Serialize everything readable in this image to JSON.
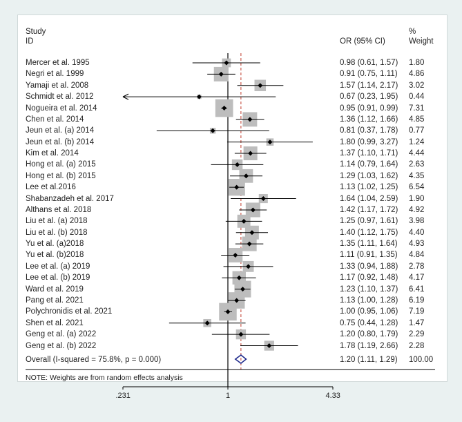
{
  "chart_data": {
    "type": "forest",
    "header": {
      "study_label_line1": "Study",
      "study_label_line2": "ID",
      "estimate_label": "OR (95% CI)",
      "weight_label_line1": "%",
      "weight_label_line2": "Weight"
    },
    "studies": [
      {
        "name": "Mercer et al. 1995",
        "or": 0.98,
        "lo": 0.61,
        "hi": 1.57,
        "weight": 1.8,
        "est_text": "0.98 (0.61, 1.57)",
        "wt_text": "1.80"
      },
      {
        "name": "Negri et al. 1999",
        "or": 0.91,
        "lo": 0.75,
        "hi": 1.11,
        "weight": 4.86,
        "est_text": "0.91 (0.75, 1.11)",
        "wt_text": "4.86"
      },
      {
        "name": "Yamaji et al. 2008",
        "or": 1.57,
        "lo": 1.14,
        "hi": 2.17,
        "weight": 3.02,
        "est_text": "1.57 (1.14, 2.17)",
        "wt_text": "3.02"
      },
      {
        "name": "Schmidt et al. 2012",
        "or": 0.67,
        "lo": 0.23,
        "hi": 1.95,
        "weight": 0.44,
        "est_text": "0.67 (0.23, 1.95)",
        "wt_text": "0.44"
      },
      {
        "name": "Nogueira et al. 2014",
        "or": 0.95,
        "lo": 0.91,
        "hi": 0.99,
        "weight": 7.31,
        "est_text": "0.95 (0.91, 0.99)",
        "wt_text": "7.31"
      },
      {
        "name": "Chen et al. 2014",
        "or": 1.36,
        "lo": 1.12,
        "hi": 1.66,
        "weight": 4.85,
        "est_text": "1.36 (1.12, 1.66)",
        "wt_text": "4.85"
      },
      {
        "name": "Jeun et al. (a) 2014",
        "or": 0.81,
        "lo": 0.37,
        "hi": 1.78,
        "weight": 0.77,
        "est_text": "0.81 (0.37, 1.78)",
        "wt_text": "0.77"
      },
      {
        "name": "Jeun et al. (b) 2014",
        "or": 1.8,
        "lo": 0.99,
        "hi": 3.27,
        "weight": 1.24,
        "est_text": "1.80 (0.99, 3.27)",
        "wt_text": "1.24"
      },
      {
        "name": "Kim et al. 2014",
        "or": 1.37,
        "lo": 1.1,
        "hi": 1.71,
        "weight": 4.44,
        "est_text": "1.37 (1.10, 1.71)",
        "wt_text": "4.44"
      },
      {
        "name": "Hong et al.  (a) 2015",
        "or": 1.14,
        "lo": 0.79,
        "hi": 1.64,
        "weight": 2.63,
        "est_text": "1.14 (0.79, 1.64)",
        "wt_text": "2.63"
      },
      {
        "name": "Hong et al. (b) 2015",
        "or": 1.29,
        "lo": 1.03,
        "hi": 1.62,
        "weight": 4.35,
        "est_text": "1.29 (1.03, 1.62)",
        "wt_text": "4.35"
      },
      {
        "name": "Lee et al.2016",
        "or": 1.13,
        "lo": 1.02,
        "hi": 1.25,
        "weight": 6.54,
        "est_text": "1.13 (1.02, 1.25)",
        "wt_text": "6.54"
      },
      {
        "name": "Shabanzadeh et al. 2017",
        "or": 1.64,
        "lo": 1.04,
        "hi": 2.59,
        "weight": 1.9,
        "est_text": "1.64 (1.04, 2.59)",
        "wt_text": "1.90"
      },
      {
        "name": "Althans et al. 2018",
        "or": 1.42,
        "lo": 1.17,
        "hi": 1.72,
        "weight": 4.92,
        "est_text": "1.42 (1.17, 1.72)",
        "wt_text": "4.92"
      },
      {
        "name": "Liu et al. (a) 2018",
        "or": 1.25,
        "lo": 0.97,
        "hi": 1.61,
        "weight": 3.98,
        "est_text": "1.25 (0.97, 1.61)",
        "wt_text": "3.98"
      },
      {
        "name": "Liu et al. (b) 2018",
        "or": 1.4,
        "lo": 1.12,
        "hi": 1.75,
        "weight": 4.4,
        "est_text": "1.40 (1.12, 1.75)",
        "wt_text": "4.40"
      },
      {
        "name": "Yu et al. (a)2018",
        "or": 1.35,
        "lo": 1.11,
        "hi": 1.64,
        "weight": 4.93,
        "est_text": "1.35 (1.11, 1.64)",
        "wt_text": "4.93"
      },
      {
        "name": "Yu et al. (b)2018",
        "or": 1.11,
        "lo": 0.91,
        "hi": 1.35,
        "weight": 4.84,
        "est_text": "1.11 (0.91, 1.35)",
        "wt_text": "4.84"
      },
      {
        "name": "Lee et al.  (a) 2019",
        "or": 1.33,
        "lo": 0.94,
        "hi": 1.88,
        "weight": 2.78,
        "est_text": "1.33 (0.94, 1.88)",
        "wt_text": "2.78"
      },
      {
        "name": "Lee et al. (b) 2019",
        "or": 1.17,
        "lo": 0.92,
        "hi": 1.48,
        "weight": 4.17,
        "est_text": "1.17 (0.92, 1.48)",
        "wt_text": "4.17"
      },
      {
        "name": "Ward et al. 2019",
        "or": 1.23,
        "lo": 1.1,
        "hi": 1.37,
        "weight": 6.41,
        "est_text": "1.23 (1.10, 1.37)",
        "wt_text": "6.41"
      },
      {
        "name": "Pang et al. 2021",
        "or": 1.13,
        "lo": 1.0,
        "hi": 1.28,
        "weight": 6.19,
        "est_text": "1.13 (1.00, 1.28)",
        "wt_text": "6.19"
      },
      {
        "name": "Polychronidis et al. 2021",
        "or": 1.0,
        "lo": 0.95,
        "hi": 1.06,
        "weight": 7.19,
        "est_text": "1.00 (0.95, 1.06)",
        "wt_text": "7.19"
      },
      {
        "name": "Shen et al. 2021",
        "or": 0.75,
        "lo": 0.44,
        "hi": 1.28,
        "weight": 1.47,
        "est_text": "0.75 (0.44, 1.28)",
        "wt_text": "1.47"
      },
      {
        "name": "Geng et al. (a) 2022",
        "or": 1.2,
        "lo": 0.8,
        "hi": 1.79,
        "weight": 2.29,
        "est_text": "1.20 (0.80, 1.79)",
        "wt_text": "2.29"
      },
      {
        "name": "Geng et al. (b) 2022",
        "or": 1.78,
        "lo": 1.19,
        "hi": 2.66,
        "weight": 2.28,
        "est_text": "1.78 (1.19, 2.66)",
        "wt_text": "2.28"
      }
    ],
    "overall": {
      "name": "Overall  (I-squared = 75.8%, p = 0.000)",
      "or": 1.2,
      "lo": 1.11,
      "hi": 1.29,
      "weight": 100.0,
      "est_text": "1.20 (1.11, 1.29)",
      "wt_text": "100.00"
    },
    "note": "NOTE: Weights are from random effects analysis",
    "x_scale": "log",
    "xlim": [
      0.231,
      4.33
    ],
    "ticks": [
      {
        "value": 0.231,
        "label": ".231"
      },
      {
        "value": 1,
        "label": "1"
      },
      {
        "value": 4.33,
        "label": "4.33"
      }
    ],
    "colors": {
      "box": "#bdbdbd",
      "marker": "#000000",
      "ci_line": "#000000",
      "null_line": "#000000",
      "overall_line": "#c0392b",
      "diamond": "#1f2a8c"
    }
  }
}
